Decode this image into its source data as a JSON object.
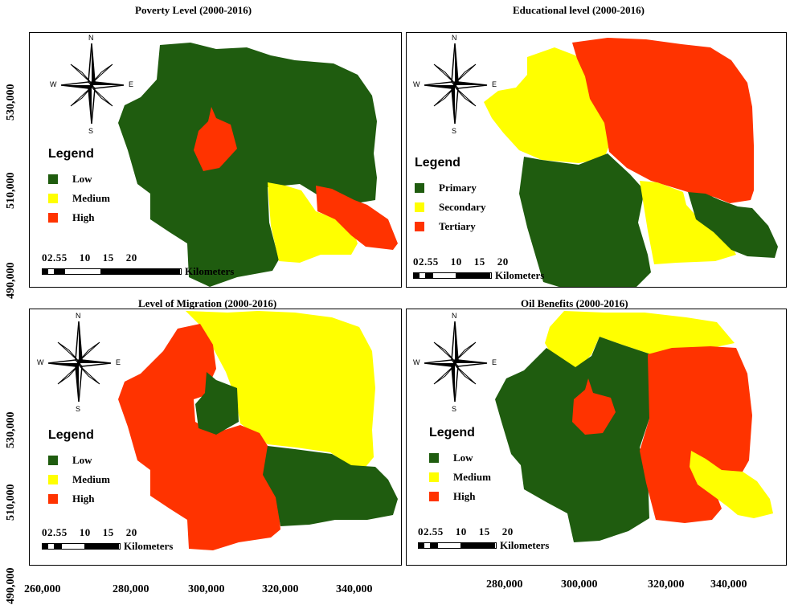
{
  "panels": [
    {
      "title": "Poverty Level (2000-2016)",
      "legend": {
        "heading": "Legend",
        "items": [
          {
            "label": "Low",
            "color": "#1f5c0f"
          },
          {
            "label": "Medium",
            "color": "#ffff00"
          },
          {
            "label": "High",
            "color": "#ff3300"
          }
        ]
      },
      "scale": {
        "numbers": "02.55    10    15    20",
        "unit": "Kilometers"
      },
      "compass": {
        "n": "N",
        "s": "S",
        "e": "E",
        "w": "W"
      }
    },
    {
      "title": "Educational level  (2000-2016)",
      "legend": {
        "heading": "Legend",
        "items": [
          {
            "label": "Primary",
            "color": "#1f5c0f"
          },
          {
            "label": "Secondary",
            "color": "#ffff00"
          },
          {
            "label": "Tertiary",
            "color": "#ff3300"
          }
        ]
      },
      "scale": {
        "numbers": "02.55    10    15    20",
        "unit": "Kilometers"
      },
      "compass": {
        "n": "N",
        "s": "S",
        "e": "E",
        "w": "W"
      }
    },
    {
      "title": "Level of Migration (2000-2016)",
      "legend": {
        "heading": "Legend",
        "items": [
          {
            "label": "Low",
            "color": "#1f5c0f"
          },
          {
            "label": "Medium",
            "color": "#ffff00"
          },
          {
            "label": "High",
            "color": "#ff3300"
          }
        ]
      },
      "scale": {
        "numbers": "02.55    10    15    20",
        "unit": "Kilometers"
      },
      "compass": {
        "n": "N",
        "s": "S",
        "e": "E",
        "w": "W"
      }
    },
    {
      "title": "Oil Benefits  (2000-2016)",
      "legend": {
        "heading": "Legend",
        "items": [
          {
            "label": "Low",
            "color": "#1f5c0f"
          },
          {
            "label": "Medium",
            "color": "#ffff00"
          },
          {
            "label": "High",
            "color": "#ff3300"
          }
        ]
      },
      "scale": {
        "numbers": "02.55    10    15    20",
        "unit": "Kilometers"
      },
      "compass": {
        "n": "N",
        "s": "S",
        "e": "E",
        "w": "W"
      }
    }
  ],
  "axes": {
    "x_left": [
      "260,000",
      "280,000",
      "300,000",
      "320,000",
      "340,000"
    ],
    "x_right": [
      "280,000",
      "300,000",
      "320,000",
      "340,000"
    ],
    "y_top": [
      "530,000",
      "510,000",
      "490,000"
    ],
    "y_bottom": [
      "530,000",
      "510,000",
      "490,000"
    ]
  }
}
